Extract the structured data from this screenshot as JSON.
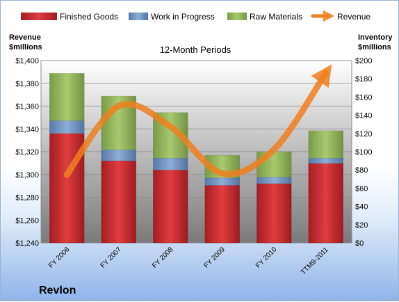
{
  "chart_data": {
    "type": "bar",
    "subtype": "stacked-bar-with-line",
    "title": "12-Month Periods",
    "company": "Revlon",
    "categories": [
      "FY 2006",
      "FY 2007",
      "FY 2008",
      "FY 2009",
      "FY 2010",
      "TTM9-2011"
    ],
    "left_axis": {
      "label_line1": "Revenue",
      "label_line2": "$millions",
      "min": 1240,
      "max": 1400,
      "step": 20,
      "ticks": [
        "$1,240",
        "$1,260",
        "$1,280",
        "$1,300",
        "$1,320",
        "$1,340",
        "$1,360",
        "$1,380",
        "$1,400"
      ]
    },
    "right_axis": {
      "label_line1": "Inventory",
      "label_line2": "$millions",
      "min": 0,
      "max": 200,
      "step": 20,
      "ticks": [
        "$0",
        "$20",
        "$40",
        "$60",
        "$80",
        "$100",
        "$120",
        "$140",
        "$160",
        "$180",
        "$200"
      ]
    },
    "series": [
      {
        "name": "Finished Goods",
        "axis": "right",
        "color": "#c0252b",
        "values": [
          120,
          90,
          80,
          63,
          65,
          87
        ]
      },
      {
        "name": "Work in Progress",
        "axis": "right",
        "color": "#6a8fc3",
        "values": [
          14,
          12,
          13,
          8,
          7,
          6
        ]
      },
      {
        "name": "Raw Materials",
        "axis": "right",
        "color": "#94b85a",
        "values": [
          52,
          59,
          50,
          25,
          28,
          30
        ]
      }
    ],
    "line_series": {
      "name": "Revenue",
      "axis": "left",
      "color": "#f07f1f",
      "values": [
        1300,
        1360,
        1342,
        1301,
        1322,
        1389
      ]
    },
    "grid": true
  }
}
